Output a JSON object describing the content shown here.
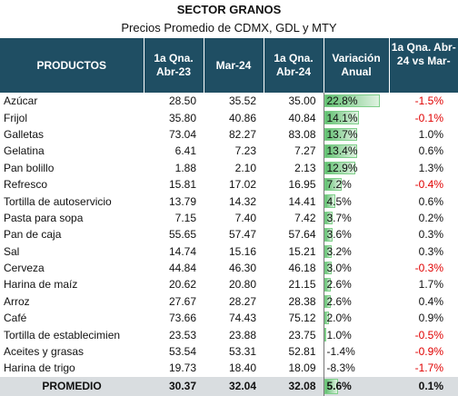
{
  "header": {
    "title": "SECTOR GRANOS",
    "subtitle": "Precios Promedio de CDMX, GDL y MTY"
  },
  "columns": [
    "PRODUCTOS",
    "1a Qna. Abr-23",
    "Mar-24",
    "1a Qna. Abr-24",
    "Variación Anual",
    "1a Qna. Abr-24 vs Mar-"
  ],
  "rows": [
    {
      "product": "Azúcar",
      "abr23": "28.50",
      "mar24": "35.52",
      "abr24": "35.00",
      "var": "22.8%",
      "var_value": 22.8,
      "chg": "-1.5%",
      "chg_neg": true
    },
    {
      "product": "Frijol",
      "abr23": "35.80",
      "mar24": "40.86",
      "abr24": "40.84",
      "var": "14.1%",
      "var_value": 14.1,
      "chg": "-0.1%",
      "chg_neg": true
    },
    {
      "product": "Galletas",
      "abr23": "73.04",
      "mar24": "82.27",
      "abr24": "83.08",
      "var": "13.7%",
      "var_value": 13.7,
      "chg": "1.0%",
      "chg_neg": false
    },
    {
      "product": "Gelatina",
      "abr23": "6.41",
      "mar24": "7.23",
      "abr24": "7.27",
      "var": "13.4%",
      "var_value": 13.4,
      "chg": "0.6%",
      "chg_neg": false
    },
    {
      "product": "Pan bolillo",
      "abr23": "1.88",
      "mar24": "2.10",
      "abr24": "2.13",
      "var": "12.9%",
      "var_value": 12.9,
      "chg": "1.3%",
      "chg_neg": false
    },
    {
      "product": "Refresco",
      "abr23": "15.81",
      "mar24": "17.02",
      "abr24": "16.95",
      "var": "7.2%",
      "var_value": 7.2,
      "chg": "-0.4%",
      "chg_neg": true
    },
    {
      "product": "Tortilla de autoservicio",
      "abr23": "13.79",
      "mar24": "14.32",
      "abr24": "14.41",
      "var": "4.5%",
      "var_value": 4.5,
      "chg": "0.6%",
      "chg_neg": false
    },
    {
      "product": "Pasta para sopa",
      "abr23": "7.15",
      "mar24": "7.40",
      "abr24": "7.42",
      "var": "3.7%",
      "var_value": 3.7,
      "chg": "0.2%",
      "chg_neg": false
    },
    {
      "product": "Pan de caja",
      "abr23": "55.65",
      "mar24": "57.47",
      "abr24": "57.64",
      "var": "3.6%",
      "var_value": 3.6,
      "chg": "0.3%",
      "chg_neg": false
    },
    {
      "product": "Sal",
      "abr23": "14.74",
      "mar24": "15.16",
      "abr24": "15.21",
      "var": "3.2%",
      "var_value": 3.2,
      "chg": "0.3%",
      "chg_neg": false
    },
    {
      "product": "Cerveza",
      "abr23": "44.84",
      "mar24": "46.30",
      "abr24": "46.18",
      "var": "3.0%",
      "var_value": 3.0,
      "chg": "-0.3%",
      "chg_neg": true
    },
    {
      "product": "Harina de maíz",
      "abr23": "20.62",
      "mar24": "20.80",
      "abr24": "21.15",
      "var": "2.6%",
      "var_value": 2.6,
      "chg": "1.7%",
      "chg_neg": false
    },
    {
      "product": "Arroz",
      "abr23": "27.67",
      "mar24": "28.27",
      "abr24": "28.38",
      "var": "2.6%",
      "var_value": 2.6,
      "chg": "0.4%",
      "chg_neg": false
    },
    {
      "product": "Café",
      "abr23": "73.66",
      "mar24": "74.43",
      "abr24": "75.12",
      "var": "2.0%",
      "var_value": 2.0,
      "chg": "0.9%",
      "chg_neg": false
    },
    {
      "product": "Tortilla de establecimien",
      "abr23": "23.53",
      "mar24": "23.88",
      "abr24": "23.75",
      "var": "1.0%",
      "var_value": 1.0,
      "chg": "-0.5%",
      "chg_neg": true
    },
    {
      "product": "Aceites y grasas",
      "abr23": "53.54",
      "mar24": "53.31",
      "abr24": "52.81",
      "var": "-1.4%",
      "var_value": -1.4,
      "chg": "-0.9%",
      "chg_neg": true
    },
    {
      "product": "Harina de trigo",
      "abr23": "19.73",
      "mar24": "18.40",
      "abr24": "18.09",
      "var": "-8.3%",
      "var_value": -8.3,
      "chg": "-1.7%",
      "chg_neg": true
    }
  ],
  "footer": {
    "label": "PROMEDIO",
    "abr23": "30.37",
    "mar24": "32.04",
    "abr24": "32.08",
    "var": "5.6%",
    "var_value": 5.6,
    "chg": "0.1%"
  },
  "colors": {
    "header_bg": "#1f4e63",
    "positive_bar": "#5fbf6f",
    "negative_bar": "#e02020",
    "negative_text": "#e00000",
    "footer_bg": "#d9dde0"
  }
}
